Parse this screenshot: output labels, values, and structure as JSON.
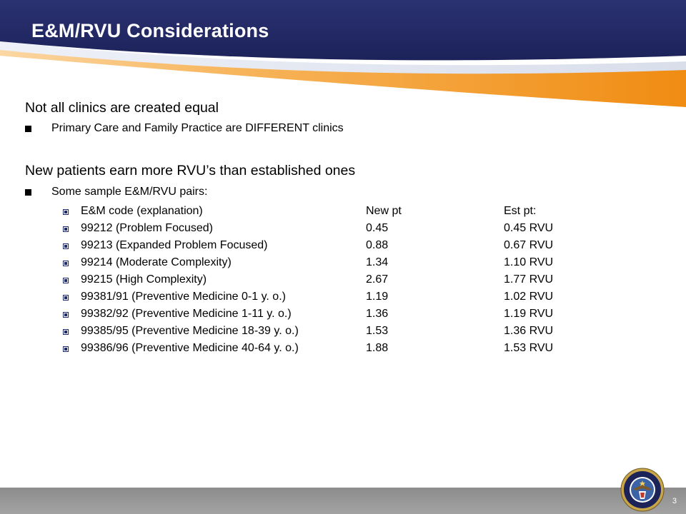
{
  "slide": {
    "title": "E&M/RVU Considerations",
    "page_number": "3"
  },
  "content": {
    "point1": "Not all clinics are created equal",
    "point1_sub": "Primary Care and Family Practice are DIFFERENT clinics",
    "point2": "New patients earn more RVU’s than established ones",
    "point2_sub": "Some sample E&M/RVU pairs:"
  },
  "rvu_table": {
    "rows": [
      {
        "code": "E&M code (explanation)",
        "new_pt": "New pt",
        "est_pt": "Est pt:"
      },
      {
        "code": "99212 (Problem Focused)",
        "new_pt": "0.45",
        "est_pt": "0.45 RVU"
      },
      {
        "code": "99213 (Expanded Problem Focused)",
        "new_pt": "0.88",
        "est_pt": "0.67 RVU"
      },
      {
        "code": "99214 (Moderate Complexity)",
        "new_pt": "1.34",
        "est_pt": "1.10 RVU"
      },
      {
        "code": "99215 (High Complexity)",
        "new_pt": "2.67",
        "est_pt": "1.77 RVU"
      },
      {
        "code": "99381/91 (Preventive Medicine 0-1 y. o.)",
        "new_pt": "1.19",
        "est_pt": "1.02 RVU"
      },
      {
        "code": "99382/92 (Preventive Medicine 1-11 y. o.)",
        "new_pt": "1.36",
        "est_pt": "1.19 RVU"
      },
      {
        "code": "99385/95 (Preventive Medicine 18-39 y. o.)",
        "new_pt": "1.53",
        "est_pt": "1.36 RVU"
      },
      {
        "code": "99386/96 (Preventive Medicine 40-64 y. o.)",
        "new_pt": "1.88",
        "est_pt": "1.53 RVU"
      }
    ]
  },
  "colors": {
    "header_navy": "#232a66",
    "accent_orange": "#f39a1e",
    "footer_gray": "#9a9a9a"
  },
  "icons": {
    "seal": "dept-of-defense-seal-icon"
  }
}
